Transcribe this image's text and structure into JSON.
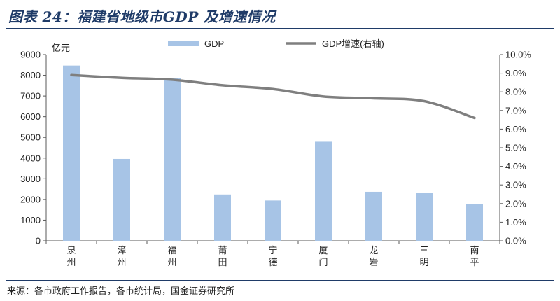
{
  "header": {
    "title": "图表 24：福建省地级市GDP 及增速情况"
  },
  "footer": {
    "source": "来源：各市政府工作报告，各市统计局，国金证券研究所"
  },
  "chart_data": {
    "type": "bar",
    "categories": [
      "泉州",
      "漳州",
      "福州",
      "莆田",
      "宁德",
      "厦门",
      "龙岩",
      "三明",
      "南平"
    ],
    "series": [
      {
        "name": "GDP",
        "type": "bar",
        "axis": "left",
        "color": "#a7c4e6",
        "values": [
          8470,
          3960,
          7850,
          2240,
          1950,
          4790,
          2370,
          2330,
          1790
        ]
      },
      {
        "name": "GDP增速(右轴)",
        "type": "line",
        "axis": "right",
        "color": "#7f7f7f",
        "values": [
          8.9,
          8.75,
          8.65,
          8.35,
          8.15,
          7.75,
          7.65,
          7.5,
          6.6
        ]
      }
    ],
    "y_left": {
      "unit_label": "亿元",
      "ylim": [
        0,
        9000
      ],
      "ticks": [
        "0",
        "1000",
        "2000",
        "3000",
        "4000",
        "5000",
        "6000",
        "7000",
        "8000",
        "9000"
      ]
    },
    "y_right": {
      "ylim": [
        0,
        10
      ],
      "ticks": [
        "0.0%",
        "1.0%",
        "2.0%",
        "3.0%",
        "4.0%",
        "5.0%",
        "6.0%",
        "7.0%",
        "8.0%",
        "9.0%",
        "10.0%"
      ]
    },
    "legend_position": "top",
    "grid": false
  }
}
